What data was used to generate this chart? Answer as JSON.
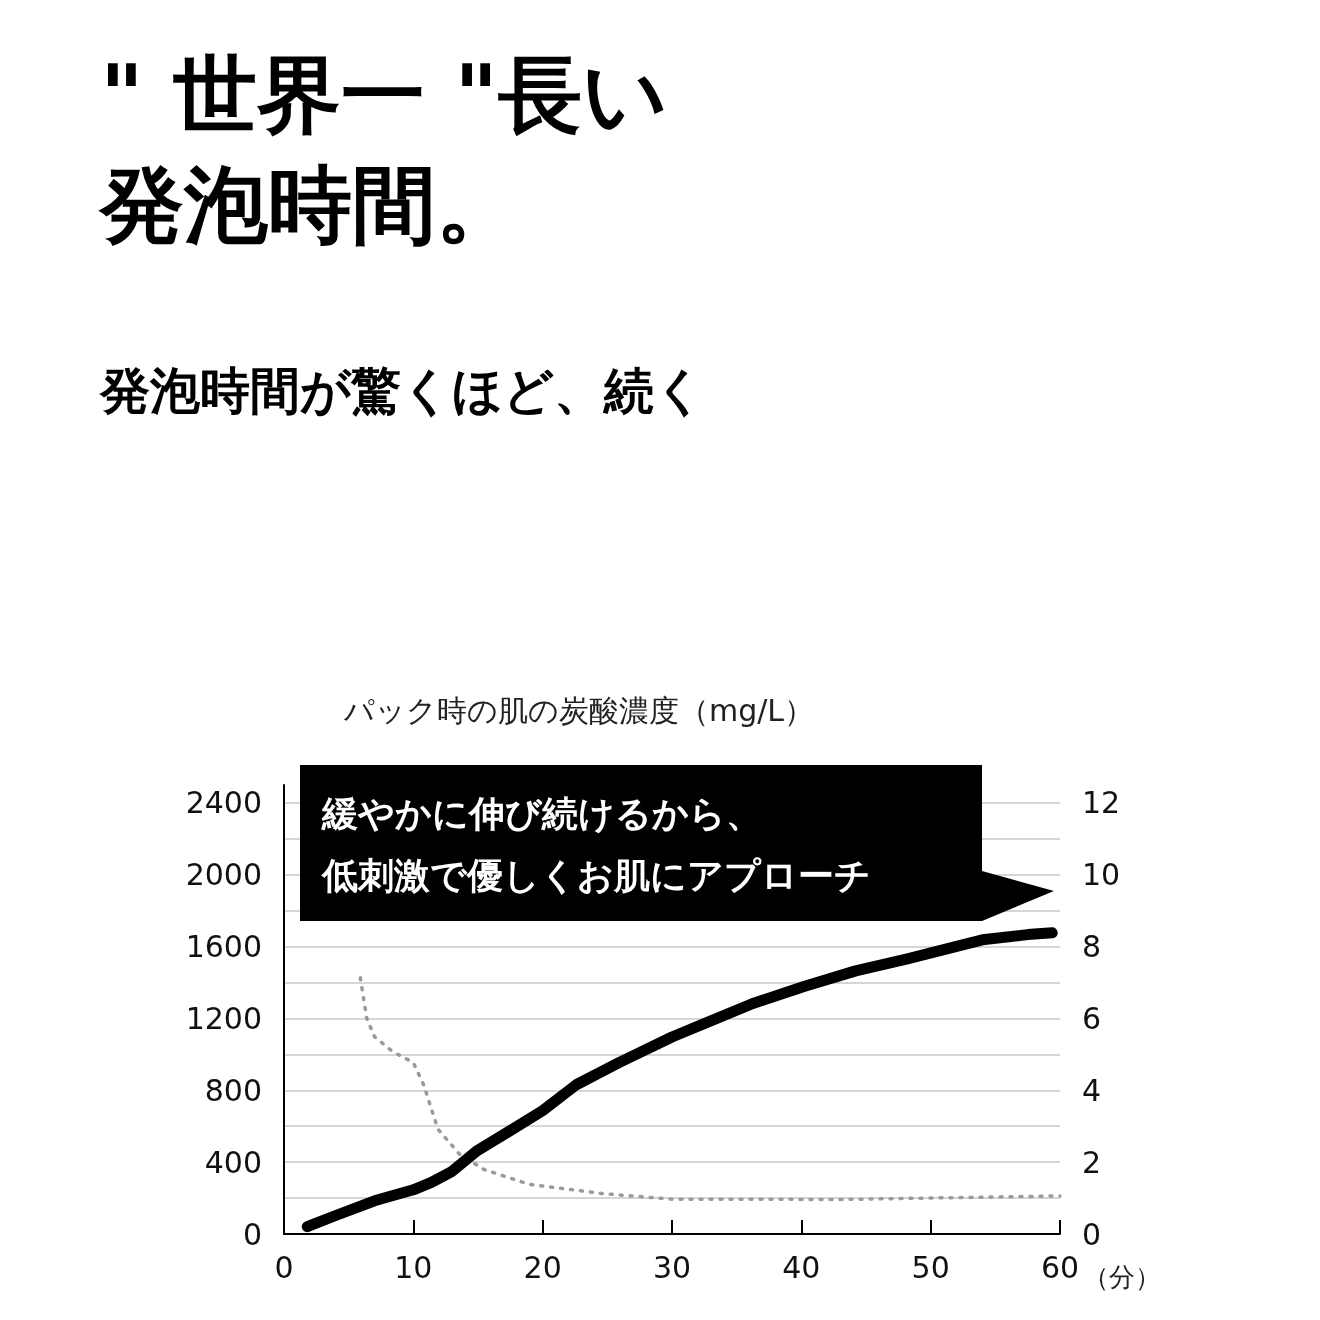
{
  "chart_data": {
    "type": "line",
    "title": "\" 世界一 \"長い発泡時間。",
    "subtitle": "発泡時間が驚くほど、続く",
    "ylabel": "パック時の肌の炭酸濃度（mg/L）",
    "xlabel": "（分）",
    "annotations": [
      "緩やかに伸び続けるから、",
      "低刺激で優しくお肌にアプローチ"
    ],
    "series": [
      {
        "color": "#000000",
        "line_style": "solid",
        "x": [
          1.8,
          4.0,
          7.0,
          10.0,
          11.4,
          13.0,
          14.9,
          17.7,
          20.0,
          22.6,
          25.9,
          30.0,
          36.2,
          40.2,
          44.2,
          48.2,
          51.4,
          54.0,
          57.5,
          59.4
        ],
        "values": [
          41,
          103,
          185,
          246,
          287,
          349,
          462,
          585,
          687,
          831,
          954,
          1097,
          1282,
          1378,
          1465,
          1532,
          1590,
          1638,
          1667,
          1677
        ]
      },
      {
        "color": "#9a9a9a",
        "line_style": "dotted",
        "axis": "y2",
        "x": [
          5.9,
          6.4,
          7.0,
          8.4,
          10.0,
          10.8,
          11.9,
          13.6,
          15.5,
          19.0,
          24.5,
          30.0,
          34.6,
          42.9,
          60.0
        ],
        "values": [
          7.13,
          6.0,
          5.49,
          5.08,
          4.77,
          4.15,
          2.92,
          2.21,
          1.79,
          1.38,
          1.13,
          0.97,
          0.97,
          0.96,
          1.06
        ]
      }
    ],
    "xlim": [
      0,
      60
    ],
    "xticks": [
      0,
      10,
      20,
      30,
      40,
      50,
      60
    ],
    "ylim": [
      0,
      2500
    ],
    "yticks": [
      0,
      {
        "value": 200,
        "label": null
      },
      400,
      {
        "value": 600,
        "label": null
      },
      800,
      {
        "value": 1000,
        "label": null
      },
      1200,
      {
        "value": 1400,
        "label": null
      },
      1600,
      {
        "value": 1800,
        "label": null
      },
      2000,
      {
        "value": 2200,
        "label": null
      },
      2400
    ],
    "y2lim": [
      0,
      12.5
    ],
    "y2ticks": [
      0,
      2,
      4,
      6,
      8,
      10,
      12
    ],
    "grid": "y",
    "marker": "none"
  }
}
